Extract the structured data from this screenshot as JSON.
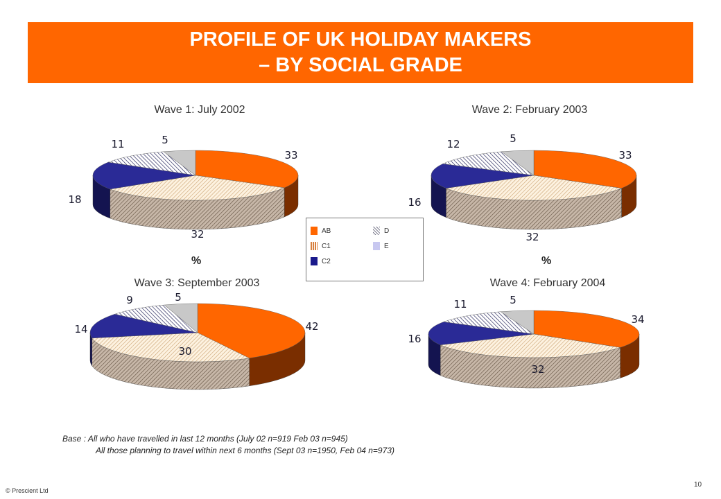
{
  "header": {
    "title_line1": "PROFILE OF UK HOLIDAY MAKERS",
    "title_line2": "– BY SOCIAL GRADE"
  },
  "percent_label": "%",
  "legend": {
    "items": [
      {
        "label": "AB",
        "color": "#ff6600",
        "pattern": "solid"
      },
      {
        "label": "C1",
        "color": "#cc6a1f",
        "pattern": "vertical-stripes"
      },
      {
        "label": "C2",
        "color": "#1a1a8c",
        "pattern": "solid"
      },
      {
        "label": "D",
        "color": "#1a1a3a",
        "pattern": "diagonal-stripes"
      },
      {
        "label": "E",
        "color": "#c8c8f0",
        "pattern": "solid"
      }
    ]
  },
  "chart_data": [
    {
      "type": "pie",
      "title": "Wave 1: July 2002",
      "categories": [
        "AB",
        "C1",
        "C2",
        "D",
        "E"
      ],
      "values": [
        33,
        32,
        18,
        11,
        5
      ]
    },
    {
      "type": "pie",
      "title": "Wave 2: February 2003",
      "categories": [
        "AB",
        "C1",
        "C2",
        "D",
        "E"
      ],
      "values": [
        33,
        32,
        16,
        12,
        5
      ]
    },
    {
      "type": "pie",
      "title": "Wave 3: September 2003",
      "categories": [
        "AB",
        "C1",
        "C2",
        "D",
        "E"
      ],
      "values": [
        42,
        30,
        14,
        9,
        5
      ]
    },
    {
      "type": "pie",
      "title": "Wave 4: February 2004",
      "categories": [
        "AB",
        "C1",
        "C2",
        "D",
        "E"
      ],
      "values": [
        34,
        32,
        16,
        11,
        5
      ]
    }
  ],
  "base_note": {
    "line1": "Base : All who have travelled in last 12 months (July 02 n=919 Feb 03 n=945)",
    "line2": "All those planning to travel within next 6 months (Sept 03 n=1950, Feb 04 n=973)"
  },
  "footer": {
    "copyright": "© Prescient Ltd",
    "page_number": "10"
  }
}
